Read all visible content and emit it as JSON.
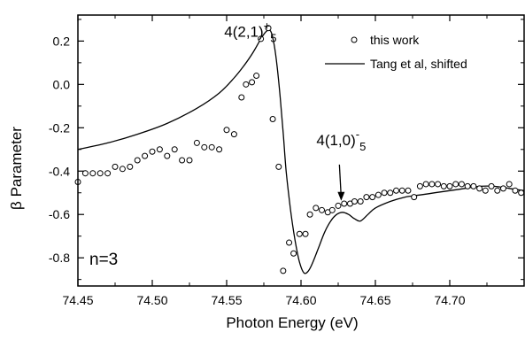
{
  "chart_data": {
    "type": "scatter",
    "xlabel": "Photon Energy (eV)",
    "ylabel": "β Parameter",
    "xlim": [
      74.45,
      74.75
    ],
    "ylim": [
      -0.93,
      0.32
    ],
    "x_ticks": [
      "74.45",
      "74.50",
      "74.55",
      "74.60",
      "74.65",
      "74.70"
    ],
    "x_tick_values": [
      74.45,
      74.5,
      74.55,
      74.6,
      74.65,
      74.7
    ],
    "y_ticks": [
      "0.2",
      "0.0",
      "-0.2",
      "-0.4",
      "-0.6",
      "-0.8"
    ],
    "y_tick_values": [
      0.2,
      0.0,
      -0.2,
      -0.4,
      -0.6,
      -0.8
    ],
    "legend_position": "top-right",
    "panel_label": "n=3",
    "series": [
      {
        "name": "this work",
        "style": "open-circle",
        "x": [
          74.45,
          74.455,
          74.46,
          74.465,
          74.47,
          74.475,
          74.48,
          74.485,
          74.49,
          74.495,
          74.5,
          74.505,
          74.51,
          74.515,
          74.52,
          74.525,
          74.53,
          74.535,
          74.54,
          74.545,
          74.55,
          74.555,
          74.56,
          74.563,
          74.567,
          74.57,
          74.573,
          74.578,
          74.581,
          74.585,
          74.588,
          74.592,
          74.595,
          74.599,
          74.603,
          74.606,
          74.61,
          74.614,
          74.618,
          74.621,
          74.625,
          74.629,
          74.633,
          74.636,
          74.64,
          74.644,
          74.648,
          74.652,
          74.656,
          74.66,
          74.664,
          74.668,
          74.672,
          74.676,
          74.68,
          74.684,
          74.688,
          74.692,
          74.696,
          74.7,
          74.704,
          74.708,
          74.712,
          74.716,
          74.72,
          74.724,
          74.728,
          74.732,
          74.736,
          74.74,
          74.744,
          74.748
        ],
        "y": [
          -0.45,
          -0.41,
          -0.41,
          -0.41,
          -0.41,
          -0.38,
          -0.39,
          -0.38,
          -0.35,
          -0.33,
          -0.31,
          -0.3,
          -0.33,
          -0.3,
          -0.35,
          -0.35,
          -0.27,
          -0.29,
          -0.29,
          -0.3,
          -0.21,
          -0.23,
          -0.06,
          0.0,
          0.01,
          0.04,
          0.21,
          0.26,
          -0.16,
          -0.38,
          -0.86,
          -0.73,
          -0.78,
          -0.69,
          -0.69,
          -0.6,
          -0.57,
          -0.58,
          -0.59,
          -0.58,
          -0.56,
          -0.55,
          -0.55,
          -0.54,
          -0.54,
          -0.52,
          -0.52,
          -0.51,
          -0.5,
          -0.5,
          -0.49,
          -0.49,
          -0.49,
          -0.52,
          -0.47,
          -0.46,
          -0.46,
          -0.46,
          -0.47,
          -0.47,
          -0.46,
          -0.46,
          -0.47,
          -0.47,
          -0.48,
          -0.49,
          -0.47,
          -0.49,
          -0.48,
          -0.46,
          -0.49,
          -0.5
        ]
      },
      {
        "name": "Tang et al, shifted",
        "style": "solid-line",
        "x": [
          74.45,
          74.47,
          74.49,
          74.51,
          74.53,
          74.545,
          74.555,
          74.562,
          74.568,
          74.573,
          74.576,
          74.578,
          74.58,
          74.582,
          74.584,
          74.586,
          74.588,
          74.59,
          74.593,
          74.596,
          74.599,
          74.602,
          74.605,
          74.608,
          74.612,
          74.616,
          74.62,
          74.624,
          74.628,
          74.632,
          74.636,
          74.64,
          74.645,
          74.65,
          74.66,
          74.67,
          74.68,
          74.69,
          74.7,
          74.71,
          74.72,
          74.73,
          74.74,
          74.75
        ],
        "y": [
          -0.3,
          -0.27,
          -0.23,
          -0.18,
          -0.11,
          -0.04,
          0.03,
          0.09,
          0.15,
          0.21,
          0.24,
          0.25,
          0.24,
          0.18,
          0.08,
          -0.06,
          -0.22,
          -0.4,
          -0.58,
          -0.72,
          -0.82,
          -0.87,
          -0.86,
          -0.82,
          -0.75,
          -0.68,
          -0.63,
          -0.6,
          -0.59,
          -0.6,
          -0.62,
          -0.63,
          -0.6,
          -0.57,
          -0.54,
          -0.52,
          -0.51,
          -0.5,
          -0.49,
          -0.48,
          -0.47,
          -0.47,
          -0.48,
          -0.49
        ]
      }
    ],
    "annotations": [
      {
        "main": "4(2,1)",
        "sup": "+",
        "sub": "5",
        "x": 74.566,
        "y": 0.22
      },
      {
        "main": "4(1,0)",
        "sup": "-",
        "sub": "5",
        "x": 74.627,
        "y": -0.28,
        "arrow_to": {
          "x": 74.627,
          "y": -0.545
        }
      }
    ]
  }
}
